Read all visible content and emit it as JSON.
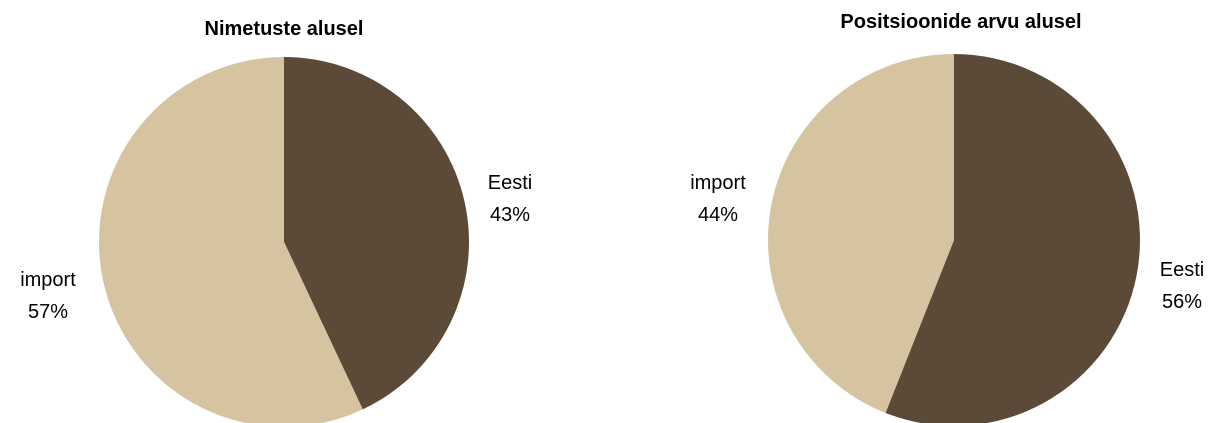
{
  "chart_data": [
    {
      "type": "pie",
      "title": "Nimetuste alusel",
      "slices": [
        {
          "label": "Eesti",
          "value": 43,
          "value_label": "43%",
          "color": "#5c4a39"
        },
        {
          "label": "import",
          "value": 57,
          "value_label": "57%",
          "color": "#d6c4a0"
        }
      ]
    },
    {
      "type": "pie",
      "title": "Positsioonide arvu alusel",
      "slices": [
        {
          "label": "Eesti",
          "value": 56,
          "value_label": "56%",
          "color": "#5c4a39"
        },
        {
          "label": "import",
          "value": 44,
          "value_label": "44%",
          "color": "#d6c4a0"
        }
      ]
    }
  ]
}
